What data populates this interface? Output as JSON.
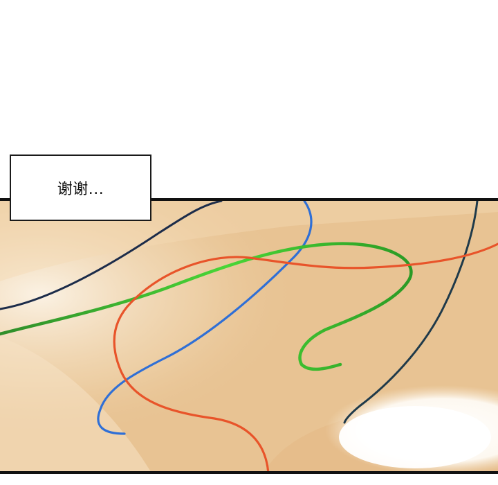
{
  "caption": {
    "text": "谢谢..."
  },
  "colors": {
    "background_tan": "#e9c596",
    "highlight": "#fbf4ea",
    "line_dark_navy": "#1c2c4a",
    "line_blue": "#2f6fd6",
    "line_green": "#3ec22a",
    "line_red_orange": "#e8542a",
    "border": "#111111"
  }
}
